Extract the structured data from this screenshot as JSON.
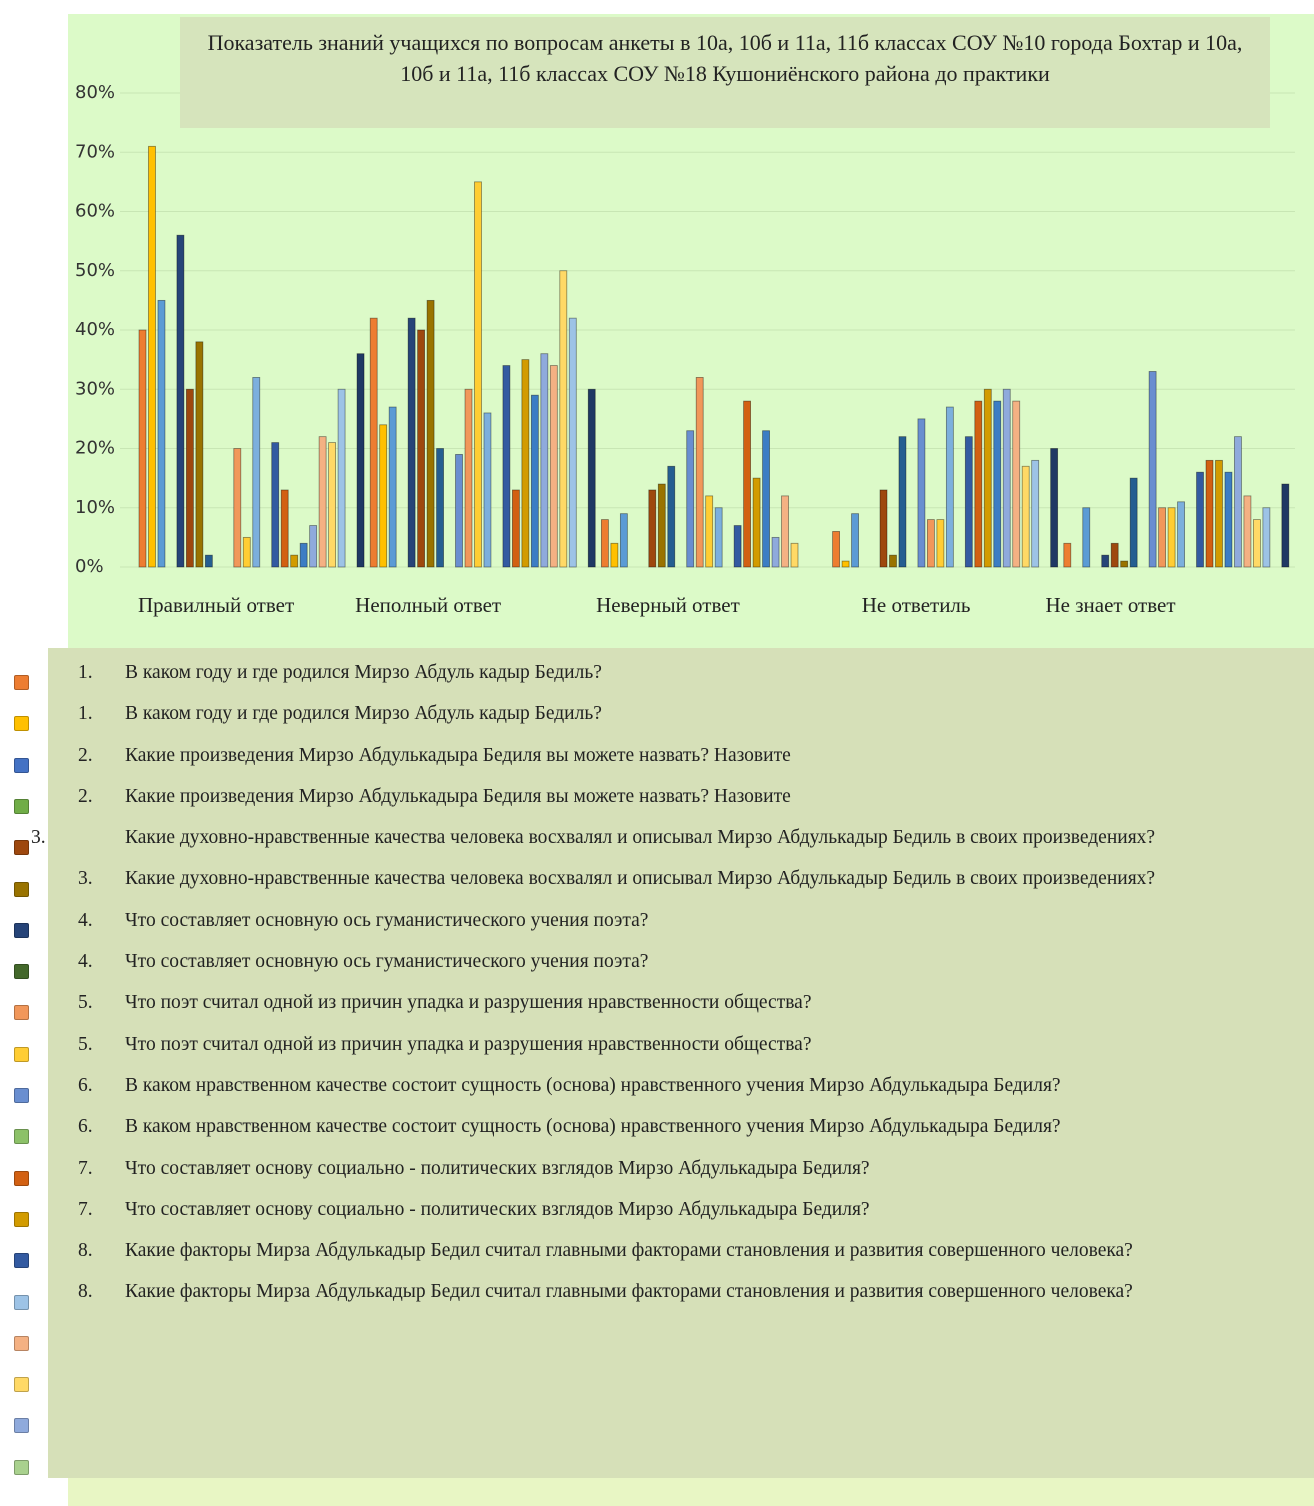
{
  "chart_data": {
    "type": "bar",
    "title": "Показатель знаний учащихся по вопросам анкеты в 10а, 10б и 11а, 11б классах СОУ №10 города Бохтар и 10а, 10б и 11а, 11б классах СОУ №18 Кушониёнского района до практики",
    "categories": [
      "Правилный ответ",
      "Неполный ответ",
      "Неверный  ответ",
      "Не ответиль",
      "Не знает ответ"
    ],
    "ylim": [
      0,
      80
    ],
    "yticks": [
      {
        "value": 0,
        "label": "0%"
      },
      {
        "value": 10,
        "label": "10%"
      },
      {
        "value": 20,
        "label": "20%"
      },
      {
        "value": 30,
        "label": "30%"
      },
      {
        "value": 40,
        "label": "40%"
      },
      {
        "value": 50,
        "label": "50%"
      },
      {
        "value": 60,
        "label": "60%"
      },
      {
        "value": 70,
        "label": "70%"
      },
      {
        "value": 80,
        "label": "80%"
      }
    ],
    "grid": true,
    "series": [
      {
        "color": "#ed7d31",
        "values": [
          40,
          42,
          8,
          6,
          4
        ]
      },
      {
        "color": "#ffc000",
        "values": [
          71,
          24,
          4,
          1,
          0
        ]
      },
      {
        "color": "#5b9bd5",
        "values": [
          45,
          27,
          9,
          9,
          10
        ]
      },
      {
        "color": "#70ad47",
        "values": [
          0,
          0,
          0,
          0,
          0
        ]
      },
      {
        "color": "#264478",
        "values": [
          56,
          42,
          0,
          0,
          2
        ]
      },
      {
        "color": "#9e480e",
        "values": [
          30,
          40,
          13,
          13,
          4
        ]
      },
      {
        "color": "#997300",
        "values": [
          38,
          45,
          14,
          2,
          1
        ]
      },
      {
        "color": "#255e91",
        "values": [
          2,
          20,
          17,
          22,
          15
        ]
      },
      {
        "color": "#43682b",
        "values": [
          0,
          0,
          0,
          0,
          0
        ]
      },
      {
        "color": "#698ed0",
        "values": [
          0,
          19,
          23,
          25,
          33
        ]
      },
      {
        "color": "#f1975a",
        "values": [
          20,
          30,
          32,
          8,
          10
        ]
      },
      {
        "color": "#ffcd33",
        "values": [
          5,
          65,
          12,
          8,
          10
        ]
      },
      {
        "color": "#7cafdd",
        "values": [
          32,
          26,
          10,
          27,
          11
        ]
      },
      {
        "color": "#8cc168",
        "values": [
          0,
          0,
          0,
          0,
          0
        ]
      },
      {
        "color": "#335aa1",
        "values": [
          21,
          34,
          7,
          22,
          16
        ]
      },
      {
        "color": "#d26012",
        "values": [
          13,
          13,
          28,
          28,
          18
        ]
      },
      {
        "color": "#d29b00",
        "values": [
          2,
          35,
          15,
          30,
          18
        ]
      },
      {
        "color": "#3c7dc4",
        "values": [
          4,
          29,
          23,
          28,
          16
        ]
      },
      {
        "color": "#8faadc",
        "values": [
          7,
          36,
          5,
          30,
          22
        ]
      },
      {
        "color": "#f4b183",
        "values": [
          22,
          34,
          12,
          28,
          12
        ]
      },
      {
        "color": "#ffd966",
        "values": [
          21,
          50,
          4,
          17,
          8
        ]
      },
      {
        "color": "#9dc3e6",
        "values": [
          30,
          42,
          0,
          18,
          10
        ]
      },
      {
        "color": "#a9d18e",
        "values": [
          0,
          0,
          0,
          0,
          0
        ]
      },
      {
        "color": "#1f3864",
        "values": [
          36,
          30,
          0,
          20,
          14
        ]
      }
    ]
  },
  "questions": [
    {
      "color": "#ed7d31",
      "number": "1.",
      "text": "В каком году и где родился Мирзо Абдуль кадыр Бедиль?"
    },
    {
      "color": "#ffc000",
      "number": "1.",
      "text": "В каком году и где родился Мирзо Абдуль кадыр Бедиль?"
    },
    {
      "color": "#4472c4",
      "number": "2.",
      "text": "Какие произведения Мирзо Абдулькадыра Бедиля вы можете назвать? Назовите"
    },
    {
      "color": "#70ad47",
      "number": "2.",
      "text": "Какие произведения Мирзо Абдулькадыра Бедиля вы можете назвать? Назовите"
    },
    {
      "color": "#9e480e",
      "number": "3.",
      "text": "Какие духовно-нравственные качества человека восхвалял и описывал Мирзо Абдулькадыр Бедиль в своих произведениях?"
    },
    {
      "color": "#997300",
      "number": "3.",
      "text": "Какие духовно-нравственные качества человека восхвалял и описывал Мирзо Абдулькадыр Бедиль в своих произведениях?"
    },
    {
      "color": "#264478",
      "number": "4.",
      "text": "Что составляет основную ось гуманистического учения поэта?"
    },
    {
      "color": "#43682b",
      "number": "4.",
      "text": "Что составляет основную ось гуманистического учения поэта?"
    },
    {
      "color": "#f1975a",
      "number": "5.",
      "text": "Что поэт считал одной из причин упадка и разрушения нравственности общества?"
    },
    {
      "color": "#ffcd33",
      "number": "5.",
      "text": "Что поэт считал одной из причин упадка и разрушения нравственности общества?"
    },
    {
      "color": "#698ed0",
      "number": "6.",
      "text": "В каком нравственном качестве состоит сущность (основа) нравственного учения Мирзо Абдулькадыра  Бедиля?"
    },
    {
      "color": "#8cc168",
      "number": "6.",
      "text": "В каком нравственном качестве состоит сущность (основа) нравственного учения Мирзо Абдулькадыра Бедиля?"
    },
    {
      "color": "#d26012",
      "number": "7.",
      "text": "Что составляет основу социально - политических взглядов Мирзо Абдулькадыра Бедиля?"
    },
    {
      "color": "#d29b00",
      "number": "7.",
      "text": "Что составляет основу социально - политических взглядов Мирзо Абдулькадыра Бедиля?"
    },
    {
      "color": "#335aa1",
      "number": "8.",
      "text": "Какие факторы Мирза Абдулькадыр Бедил считал главными факторами становления и развития совершенного человека?"
    },
    {
      "color": "#9dc3e6",
      "number": "8.",
      "text": "Какие факторы Мирза Абдулькадыр Бедил считал главными факторами становления и развития совершенного человека?"
    },
    {
      "color": "#f4b183",
      "number": "",
      "text": ""
    },
    {
      "color": "#ffd966",
      "number": "",
      "text": ""
    },
    {
      "color": "#8faadc",
      "number": "",
      "text": ""
    },
    {
      "color": "#a9d18e",
      "number": "",
      "text": ""
    }
  ]
}
